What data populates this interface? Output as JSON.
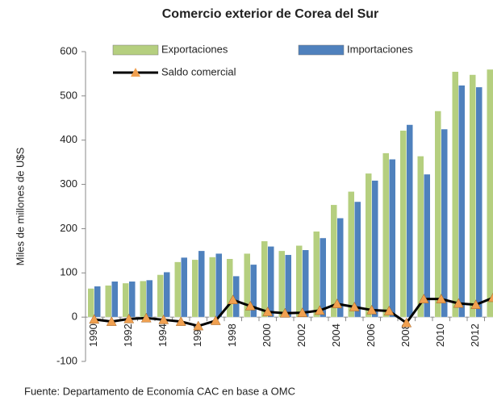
{
  "chart_data": {
    "type": "bar-line",
    "title": "Comercio exterior de Corea del Sur",
    "y_label": "Miles de millones de U$S",
    "source": "Fuente: Departamento de Economía CAC en base a OMC",
    "categories": [
      "1990",
      null,
      "1992",
      null,
      "1994",
      null,
      "1996",
      null,
      "1998",
      null,
      "2000",
      null,
      "2002",
      null,
      "2004",
      null,
      "2006",
      null,
      "2008",
      null,
      "2010",
      null,
      "2012",
      null
    ],
    "series": [
      {
        "name": "Exportaciones",
        "color": "#b5cf7f",
        "type": "bar",
        "values": [
          65,
          72,
          77,
          82,
          96,
          125,
          130,
          136,
          132,
          144,
          172,
          150,
          162,
          194,
          254,
          284,
          325,
          371,
          422,
          364,
          466,
          555,
          548,
          560
        ]
      },
      {
        "name": "Importaciones",
        "color": "#4f81bd",
        "type": "bar",
        "values": [
          70,
          81,
          81,
          84,
          102,
          135,
          150,
          144,
          93,
          119,
          160,
          141,
          152,
          179,
          224,
          261,
          309,
          357,
          435,
          323,
          425,
          524,
          520,
          516
        ]
      },
      {
        "name": "Saldo comercial",
        "color": "#000000",
        "marker_color": "#f0a050",
        "type": "line",
        "values": [
          -5,
          -10,
          -4,
          -2,
          -6,
          -10,
          -20,
          -8,
          39,
          25,
          12,
          9,
          10,
          15,
          30,
          23,
          16,
          14,
          -13,
          41,
          41,
          31,
          28,
          44
        ]
      }
    ],
    "ylim": [
      -100,
      600
    ],
    "yticks": [
      -100,
      0,
      100,
      200,
      300,
      400,
      500,
      600
    ]
  }
}
